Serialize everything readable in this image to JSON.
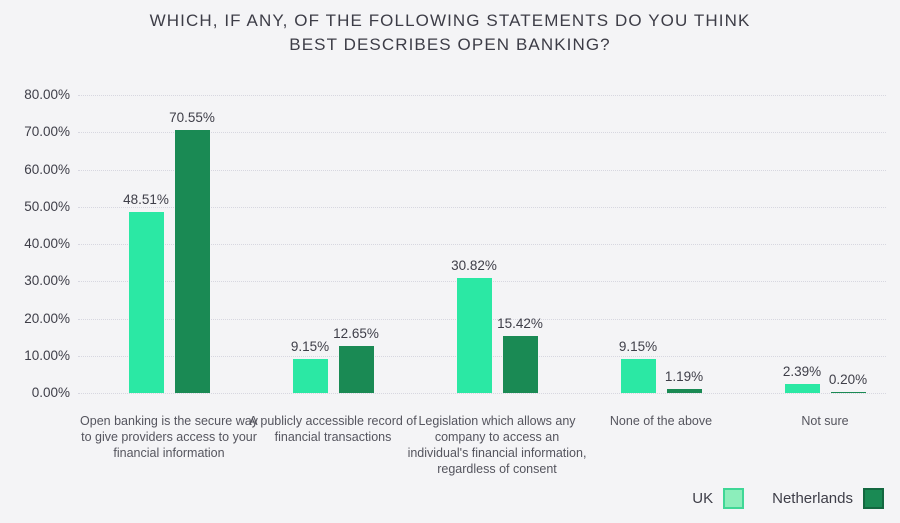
{
  "title_lines": [
    "WHICH, IF ANY, OF THE FOLLOWING STATEMENTS DO YOU THINK",
    "BEST DESCRIBES OPEN BANKING?"
  ],
  "colors": {
    "background": "#f4f4f6",
    "gridline": "#d7d7e0",
    "text_dark": "#3e3e48",
    "text_muted": "#55555e"
  },
  "chart_data": {
    "type": "bar",
    "title": "WHICH, IF ANY, OF THE FOLLOWING STATEMENTS DO YOU THINK BEST DESCRIBES OPEN BANKING?",
    "categories": [
      "Open banking is the secure way to give providers access to your financial information",
      "A publicly accessible record of financial transactions",
      "Legislation which allows any company to access an individual's financial information, regardless of consent",
      "None of the above",
      "Not sure"
    ],
    "series": [
      {
        "name": "UK",
        "color": "#2be8a4",
        "legend_fill": "#8ceebb",
        "legend_border": "#3fd796",
        "values": [
          48.51,
          9.15,
          30.82,
          9.15,
          2.39
        ],
        "labels": [
          "48.51%",
          "9.15%",
          "30.82%",
          "9.15%",
          "2.39%"
        ]
      },
      {
        "name": "Netherlands",
        "color": "#1a8a54",
        "legend_fill": "#1a8a54",
        "legend_border": "#136840",
        "values": [
          70.55,
          12.65,
          15.42,
          1.19,
          0.2
        ],
        "labels": [
          "70.55%",
          "12.65%",
          "15.42%",
          "1.19%",
          "0.20%"
        ]
      }
    ],
    "y_axis": {
      "min": 0,
      "max": 80,
      "ticks": [
        {
          "label": "80.00%",
          "value": 80
        },
        {
          "label": "70.00%",
          "value": 70
        },
        {
          "label": "60.00%",
          "value": 60
        },
        {
          "label": "50.00%",
          "value": 50
        },
        {
          "label": "40.00%",
          "value": 40
        },
        {
          "label": "30.00%",
          "value": 30
        },
        {
          "label": "20.00%",
          "value": 20
        },
        {
          "label": "10.00%",
          "value": 10
        },
        {
          "label": "0.00%",
          "value": 0
        }
      ]
    },
    "grid": "horizontal-dotted",
    "legend_position": "bottom-right"
  },
  "legend": {
    "uk_label": "UK",
    "netherlands_label": "Netherlands"
  }
}
